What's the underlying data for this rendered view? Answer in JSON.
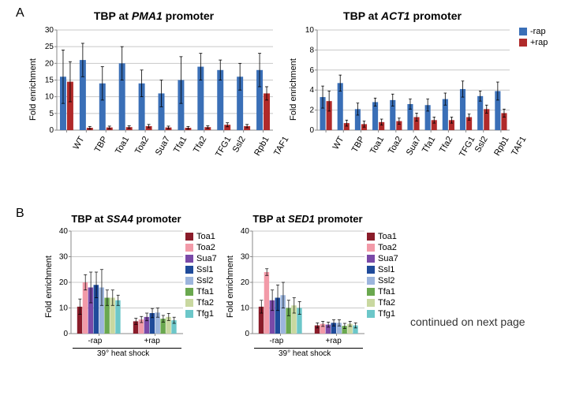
{
  "panels": {
    "a": "A",
    "b": "B"
  },
  "colors_two": {
    "minus": "#3a6fb7",
    "plus": "#b02a2a"
  },
  "legend_two": {
    "minus": "-rap",
    "plus": "+rap"
  },
  "axis": {
    "grid_color": "#c8c8c8",
    "axis_color": "#888",
    "error_color": "#000",
    "bg": "#ffffff"
  },
  "panelA": {
    "categories": [
      "WT",
      "TBP",
      "Toa1",
      "Toa2",
      "Sua7",
      "Tfa1",
      "Tfa2",
      "TFG1",
      "Ssl2",
      "Rpb1",
      "TAF1"
    ],
    "pma1": {
      "title_prefix": "TBP at ",
      "title_gene": "PMA1",
      "title_suffix": " promoter",
      "ylim": [
        0,
        30
      ],
      "ytick_step": 5,
      "ylabel": "Fold enrichment",
      "minus": [
        16,
        21,
        14,
        20,
        14,
        11,
        15,
        19,
        18,
        16,
        18
      ],
      "plus": [
        14.5,
        0.7,
        0.8,
        0.9,
        1.2,
        0.8,
        0.7,
        0.9,
        1.6,
        1.2,
        11
      ],
      "minus_err": [
        8,
        5,
        5,
        5,
        4,
        4,
        7,
        4,
        3,
        4,
        5
      ],
      "plus_err": [
        6,
        0.4,
        0.4,
        0.4,
        0.5,
        0.4,
        0.4,
        0.4,
        0.6,
        0.5,
        2
      ]
    },
    "act1": {
      "title_prefix": "TBP at ",
      "title_gene": "ACT1",
      "title_suffix": " promoter",
      "ylim": [
        0,
        10
      ],
      "ytick_step": 2,
      "ylabel": "Fold enrichment",
      "minus": [
        3.3,
        4.7,
        2.1,
        2.8,
        3.0,
        2.6,
        2.5,
        3.1,
        4.1,
        3.4,
        3.9
      ],
      "plus": [
        2.9,
        0.7,
        0.6,
        0.8,
        0.9,
        1.3,
        1.0,
        1.0,
        1.3,
        2.1,
        1.7
      ],
      "minus_err": [
        1.1,
        0.8,
        0.6,
        0.4,
        0.6,
        0.5,
        0.6,
        0.6,
        0.8,
        0.5,
        0.9
      ],
      "plus_err": [
        1.0,
        0.3,
        0.3,
        0.3,
        0.3,
        0.4,
        0.3,
        0.3,
        0.3,
        0.4,
        0.4
      ]
    }
  },
  "panelB": {
    "series_names": [
      "Toa1",
      "Toa2",
      "Sua7",
      "Ssl1",
      "Ssl2",
      "Tfa1",
      "Tfa2",
      "Tfg1"
    ],
    "series_colors": [
      "#8a1c2a",
      "#f29aa8",
      "#7a4aa8",
      "#1f4b9a",
      "#9cb5dd",
      "#6aa84f",
      "#c9d8a0",
      "#6cc7c9"
    ],
    "conditions": [
      "-rap",
      "+rap"
    ],
    "heat_label": "39° heat shock",
    "ssa4": {
      "title_prefix": "TBP at ",
      "title_gene": "SSA4",
      "title_suffix": " promoter",
      "ylim": [
        0,
        40
      ],
      "ytick_step": 10,
      "ylabel": "Fold enrichment",
      "minus": [
        10.5,
        20,
        18,
        19,
        18,
        14,
        14,
        13
      ],
      "plus": [
        4.8,
        5.5,
        6.5,
        8,
        8.2,
        5.8,
        6.5,
        5.2
      ],
      "minus_err": [
        3,
        3,
        6,
        5,
        7,
        3,
        3,
        2
      ],
      "plus_err": [
        1.2,
        1.2,
        1.5,
        1.8,
        1.8,
        1.3,
        1.4,
        1.2
      ]
    },
    "sed1": {
      "title_prefix": "TBP at ",
      "title_gene": "SED1",
      "title_suffix": " promoter",
      "ylim": [
        0,
        40
      ],
      "ytick_step": 10,
      "ylabel": "Fold enrichment",
      "minus": [
        10.5,
        24,
        13,
        14,
        15,
        10,
        11,
        10
      ],
      "plus": [
        3.2,
        3.8,
        3.5,
        4.2,
        4.2,
        3.0,
        3.8,
        3.2
      ],
      "minus_err": [
        2.5,
        1.3,
        4,
        5,
        5,
        3,
        3,
        2.5
      ],
      "plus_err": [
        1,
        1,
        1,
        1.2,
        1.2,
        1,
        1,
        1
      ]
    }
  },
  "continued": "continued on next page"
}
